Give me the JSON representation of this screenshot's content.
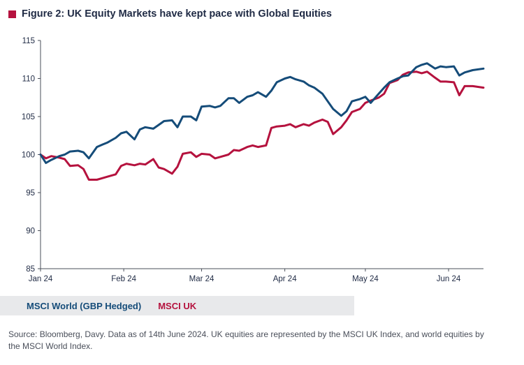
{
  "title": "Figure 2: UK Equity Markets have kept pace with Global Equities",
  "colors": {
    "title_marker": "#b5123e",
    "msci_world": "#154c79",
    "msci_uk": "#b5123e",
    "axis": "#4a4f5a",
    "legend_bg": "#e8e9eb"
  },
  "legend": {
    "world_label": "MSCI World (GBP Hedged)",
    "uk_label": "MSCI UK"
  },
  "source": "Source: Bloomberg, Davy. Data as of 14th June 2024. UK equities are represented by the MSCI UK Index, and world equities by the MSCI World Index.",
  "chart_data": {
    "type": "line",
    "title": "Figure 2: UK Equity Markets have kept pace with Global Equities",
    "xlabel": "",
    "ylabel": "",
    "ylim": [
      85,
      115
    ],
    "yticks": [
      85,
      90,
      95,
      100,
      105,
      110,
      115
    ],
    "xlim": [
      "2024-01-01",
      "2024-06-14"
    ],
    "xticks": [
      {
        "date": "2024-01-01",
        "label": "Jan 24"
      },
      {
        "date": "2024-02-01",
        "label": "Feb 24"
      },
      {
        "date": "2024-03-01",
        "label": "Mar 24"
      },
      {
        "date": "2024-04-01",
        "label": "Apr 24"
      },
      {
        "date": "2024-05-01",
        "label": "May 24"
      },
      {
        "date": "2024-06-01",
        "label": "Jun 24"
      }
    ],
    "grid": false,
    "legend_position": "bottom",
    "series": [
      {
        "name": "MSCI World (GBP Hedged)",
        "color": "#154c79",
        "points": [
          [
            "2024-01-01",
            100.0
          ],
          [
            "2024-01-03",
            98.9
          ],
          [
            "2024-01-05",
            99.3
          ],
          [
            "2024-01-08",
            99.8
          ],
          [
            "2024-01-10",
            100.0
          ],
          [
            "2024-01-12",
            100.4
          ],
          [
            "2024-01-15",
            100.5
          ],
          [
            "2024-01-17",
            100.3
          ],
          [
            "2024-01-19",
            99.5
          ],
          [
            "2024-01-22",
            101.0
          ],
          [
            "2024-01-24",
            101.3
          ],
          [
            "2024-01-26",
            101.6
          ],
          [
            "2024-01-29",
            102.2
          ],
          [
            "2024-01-31",
            102.8
          ],
          [
            "2024-02-02",
            103.0
          ],
          [
            "2024-02-05",
            102.0
          ],
          [
            "2024-02-07",
            103.3
          ],
          [
            "2024-02-09",
            103.6
          ],
          [
            "2024-02-12",
            103.4
          ],
          [
            "2024-02-14",
            103.9
          ],
          [
            "2024-02-16",
            104.4
          ],
          [
            "2024-02-19",
            104.5
          ],
          [
            "2024-02-21",
            103.6
          ],
          [
            "2024-02-23",
            105.0
          ],
          [
            "2024-02-26",
            105.0
          ],
          [
            "2024-02-28",
            104.5
          ],
          [
            "2024-03-01",
            106.3
          ],
          [
            "2024-03-04",
            106.4
          ],
          [
            "2024-03-06",
            106.2
          ],
          [
            "2024-03-08",
            106.4
          ],
          [
            "2024-03-11",
            107.4
          ],
          [
            "2024-03-13",
            107.4
          ],
          [
            "2024-03-15",
            106.8
          ],
          [
            "2024-03-18",
            107.6
          ],
          [
            "2024-03-20",
            107.8
          ],
          [
            "2024-03-22",
            108.2
          ],
          [
            "2024-03-25",
            107.6
          ],
          [
            "2024-03-27",
            108.4
          ],
          [
            "2024-03-29",
            109.5
          ],
          [
            "2024-04-01",
            110.0
          ],
          [
            "2024-04-03",
            110.2
          ],
          [
            "2024-04-05",
            109.9
          ],
          [
            "2024-04-08",
            109.6
          ],
          [
            "2024-04-10",
            109.1
          ],
          [
            "2024-04-12",
            108.8
          ],
          [
            "2024-04-15",
            108.0
          ],
          [
            "2024-04-17",
            107.0
          ],
          [
            "2024-04-19",
            106.0
          ],
          [
            "2024-04-22",
            105.1
          ],
          [
            "2024-04-24",
            105.7
          ],
          [
            "2024-04-26",
            107.0
          ],
          [
            "2024-04-29",
            107.3
          ],
          [
            "2024-05-01",
            107.6
          ],
          [
            "2024-05-03",
            106.8
          ],
          [
            "2024-05-06",
            108.0
          ],
          [
            "2024-05-08",
            108.8
          ],
          [
            "2024-05-10",
            109.5
          ],
          [
            "2024-05-13",
            110.0
          ],
          [
            "2024-05-15",
            110.3
          ],
          [
            "2024-05-17",
            110.4
          ],
          [
            "2024-05-20",
            111.5
          ],
          [
            "2024-05-22",
            111.8
          ],
          [
            "2024-05-24",
            112.0
          ],
          [
            "2024-05-27",
            111.3
          ],
          [
            "2024-05-29",
            111.6
          ],
          [
            "2024-05-31",
            111.5
          ],
          [
            "2024-06-03",
            111.6
          ],
          [
            "2024-06-05",
            110.4
          ],
          [
            "2024-06-07",
            110.8
          ],
          [
            "2024-06-10",
            111.1
          ],
          [
            "2024-06-14",
            111.3
          ]
        ]
      },
      {
        "name": "MSCI UK",
        "color": "#b5123e",
        "points": [
          [
            "2024-01-01",
            100.0
          ],
          [
            "2024-01-03",
            99.5
          ],
          [
            "2024-01-05",
            99.8
          ],
          [
            "2024-01-08",
            99.6
          ],
          [
            "2024-01-10",
            99.4
          ],
          [
            "2024-01-12",
            98.5
          ],
          [
            "2024-01-15",
            98.6
          ],
          [
            "2024-01-17",
            98.1
          ],
          [
            "2024-01-19",
            96.7
          ],
          [
            "2024-01-22",
            96.7
          ],
          [
            "2024-01-24",
            96.9
          ],
          [
            "2024-01-26",
            97.1
          ],
          [
            "2024-01-29",
            97.4
          ],
          [
            "2024-01-31",
            98.5
          ],
          [
            "2024-02-02",
            98.8
          ],
          [
            "2024-02-05",
            98.6
          ],
          [
            "2024-02-07",
            98.8
          ],
          [
            "2024-02-09",
            98.7
          ],
          [
            "2024-02-12",
            99.4
          ],
          [
            "2024-02-14",
            98.3
          ],
          [
            "2024-02-16",
            98.1
          ],
          [
            "2024-02-19",
            97.5
          ],
          [
            "2024-02-21",
            98.4
          ],
          [
            "2024-02-23",
            100.1
          ],
          [
            "2024-02-26",
            100.3
          ],
          [
            "2024-02-28",
            99.7
          ],
          [
            "2024-03-01",
            100.1
          ],
          [
            "2024-03-04",
            100.0
          ],
          [
            "2024-03-06",
            99.5
          ],
          [
            "2024-03-08",
            99.7
          ],
          [
            "2024-03-11",
            100.0
          ],
          [
            "2024-03-13",
            100.6
          ],
          [
            "2024-03-15",
            100.5
          ],
          [
            "2024-03-18",
            101.0
          ],
          [
            "2024-03-20",
            101.2
          ],
          [
            "2024-03-22",
            101.0
          ],
          [
            "2024-03-25",
            101.2
          ],
          [
            "2024-03-27",
            103.5
          ],
          [
            "2024-03-29",
            103.7
          ],
          [
            "2024-04-01",
            103.8
          ],
          [
            "2024-04-03",
            104.0
          ],
          [
            "2024-04-05",
            103.6
          ],
          [
            "2024-04-08",
            104.0
          ],
          [
            "2024-04-10",
            103.8
          ],
          [
            "2024-04-12",
            104.2
          ],
          [
            "2024-04-15",
            104.6
          ],
          [
            "2024-04-17",
            104.3
          ],
          [
            "2024-04-19",
            102.7
          ],
          [
            "2024-04-22",
            103.6
          ],
          [
            "2024-04-24",
            104.5
          ],
          [
            "2024-04-26",
            105.6
          ],
          [
            "2024-04-29",
            106.0
          ],
          [
            "2024-05-01",
            106.8
          ],
          [
            "2024-05-03",
            107.1
          ],
          [
            "2024-05-06",
            107.5
          ],
          [
            "2024-05-08",
            108.0
          ],
          [
            "2024-05-10",
            109.4
          ],
          [
            "2024-05-13",
            109.8
          ],
          [
            "2024-05-15",
            110.5
          ],
          [
            "2024-05-17",
            110.8
          ],
          [
            "2024-05-20",
            110.9
          ],
          [
            "2024-05-22",
            110.7
          ],
          [
            "2024-05-24",
            110.9
          ],
          [
            "2024-05-27",
            110.1
          ],
          [
            "2024-05-29",
            109.6
          ],
          [
            "2024-05-31",
            109.6
          ],
          [
            "2024-06-03",
            109.5
          ],
          [
            "2024-06-05",
            107.8
          ],
          [
            "2024-06-07",
            109.0
          ],
          [
            "2024-06-10",
            109.0
          ],
          [
            "2024-06-14",
            108.8
          ]
        ]
      }
    ]
  }
}
